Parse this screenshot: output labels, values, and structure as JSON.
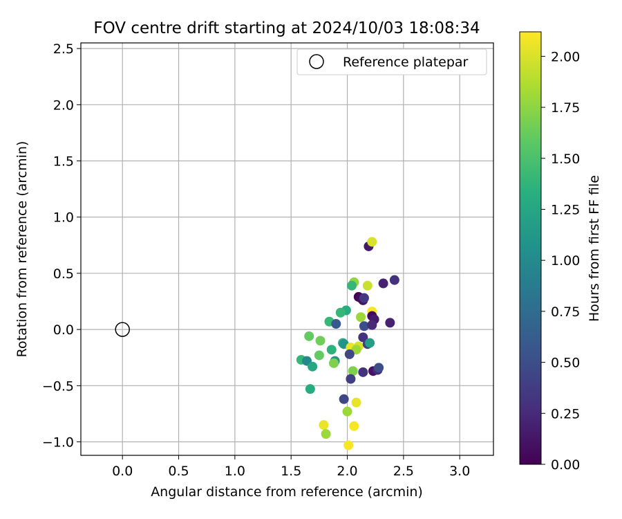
{
  "chart_data": {
    "type": "scatter",
    "title": "FOV centre drift starting at 2024/10/03 18:08:34",
    "xlabel": "Angular distance from reference (arcmin)",
    "ylabel": "Rotation from reference (arcmin)",
    "xlim": [
      -0.37,
      3.3
    ],
    "ylim": [
      -1.12,
      2.55
    ],
    "xticks": [
      0.0,
      0.5,
      1.0,
      1.5,
      2.0,
      2.5,
      3.0
    ],
    "xtick_labels": [
      "0.0",
      "0.5",
      "1.0",
      "1.5",
      "2.0",
      "2.5",
      "3.0"
    ],
    "yticks": [
      -1.0,
      -0.5,
      0.0,
      0.5,
      1.0,
      1.5,
      2.0,
      2.5
    ],
    "ytick_labels": [
      "−1.0",
      "−0.5",
      "0.0",
      "0.5",
      "1.0",
      "1.5",
      "2.0",
      "2.5"
    ],
    "grid": true,
    "legend": {
      "position": "top-right",
      "label": "Reference platepar"
    },
    "reference_point": {
      "x": 0.0,
      "y": 0.0
    },
    "colorbar": {
      "label": "Hours from first FF file",
      "colormap": "viridis",
      "range": [
        0.0,
        2.12
      ],
      "ticks": [
        0.0,
        0.25,
        0.5,
        0.75,
        1.0,
        1.25,
        1.5,
        1.75,
        2.0
      ],
      "tick_labels": [
        "0.00",
        "0.25",
        "0.50",
        "0.75",
        "1.00",
        "1.25",
        "1.50",
        "1.75",
        "2.00"
      ]
    },
    "points": [
      {
        "x": 2.19,
        "y": 0.74,
        "c": 0.15
      },
      {
        "x": 2.22,
        "y": 0.78,
        "c": 2.0
      },
      {
        "x": 2.32,
        "y": 0.41,
        "c": 0.2
      },
      {
        "x": 2.42,
        "y": 0.44,
        "c": 0.3
      },
      {
        "x": 2.06,
        "y": 0.42,
        "c": 1.75
      },
      {
        "x": 2.04,
        "y": 0.39,
        "c": 1.4
      },
      {
        "x": 2.18,
        "y": 0.39,
        "c": 1.95
      },
      {
        "x": 2.1,
        "y": 0.29,
        "c": 0.0
      },
      {
        "x": 2.12,
        "y": 0.28,
        "c": 0.05
      },
      {
        "x": 2.14,
        "y": 0.26,
        "c": 0.1
      },
      {
        "x": 2.15,
        "y": 0.28,
        "c": 0.35
      },
      {
        "x": 1.99,
        "y": 0.17,
        "c": 1.3
      },
      {
        "x": 1.94,
        "y": 0.15,
        "c": 1.4
      },
      {
        "x": 2.22,
        "y": 0.16,
        "c": 2.1
      },
      {
        "x": 2.12,
        "y": 0.11,
        "c": 1.8
      },
      {
        "x": 2.22,
        "y": 0.12,
        "c": 0.05
      },
      {
        "x": 2.24,
        "y": 0.09,
        "c": 0.15
      },
      {
        "x": 1.84,
        "y": 0.07,
        "c": 1.4
      },
      {
        "x": 1.9,
        "y": 0.05,
        "c": 0.6
      },
      {
        "x": 2.15,
        "y": 0.03,
        "c": 0.5
      },
      {
        "x": 2.22,
        "y": 0.04,
        "c": 0.25
      },
      {
        "x": 2.38,
        "y": 0.06,
        "c": 0.2
      },
      {
        "x": 1.66,
        "y": -0.06,
        "c": 1.6
      },
      {
        "x": 2.14,
        "y": -0.07,
        "c": 0.3
      },
      {
        "x": 1.76,
        "y": -0.1,
        "c": 1.65
      },
      {
        "x": 1.96,
        "y": -0.12,
        "c": 1.35
      },
      {
        "x": 1.97,
        "y": -0.13,
        "c": 1.1
      },
      {
        "x": 2.03,
        "y": -0.16,
        "c": 2.05
      },
      {
        "x": 2.1,
        "y": -0.15,
        "c": 2.0
      },
      {
        "x": 2.08,
        "y": -0.18,
        "c": 1.8
      },
      {
        "x": 2.18,
        "y": -0.13,
        "c": 0.4
      },
      {
        "x": 2.2,
        "y": -0.12,
        "c": 1.2
      },
      {
        "x": 1.86,
        "y": -0.18,
        "c": 1.35
      },
      {
        "x": 2.02,
        "y": -0.22,
        "c": 0.45
      },
      {
        "x": 1.75,
        "y": -0.23,
        "c": 1.6
      },
      {
        "x": 1.59,
        "y": -0.27,
        "c": 1.4
      },
      {
        "x": 1.64,
        "y": -0.28,
        "c": 1.0
      },
      {
        "x": 1.89,
        "y": -0.28,
        "c": 1.1
      },
      {
        "x": 1.88,
        "y": -0.3,
        "c": 1.7
      },
      {
        "x": 1.69,
        "y": -0.33,
        "c": 1.25
      },
      {
        "x": 2.05,
        "y": -0.37,
        "c": 1.7
      },
      {
        "x": 2.14,
        "y": -0.38,
        "c": 0.3
      },
      {
        "x": 2.23,
        "y": -0.37,
        "c": 0.1
      },
      {
        "x": 2.27,
        "y": -0.36,
        "c": 0.25
      },
      {
        "x": 2.28,
        "y": -0.34,
        "c": 0.5
      },
      {
        "x": 2.03,
        "y": -0.44,
        "c": 0.4
      },
      {
        "x": 1.67,
        "y": -0.53,
        "c": 1.3
      },
      {
        "x": 1.97,
        "y": -0.62,
        "c": 0.45
      },
      {
        "x": 2.08,
        "y": -0.65,
        "c": 2.05
      },
      {
        "x": 2.0,
        "y": -0.73,
        "c": 1.8
      },
      {
        "x": 1.79,
        "y": -0.85,
        "c": 2.05
      },
      {
        "x": 2.06,
        "y": -0.86,
        "c": 2.1
      },
      {
        "x": 1.81,
        "y": -0.93,
        "c": 1.8
      },
      {
        "x": 2.01,
        "y": -1.03,
        "c": 2.1
      }
    ]
  }
}
